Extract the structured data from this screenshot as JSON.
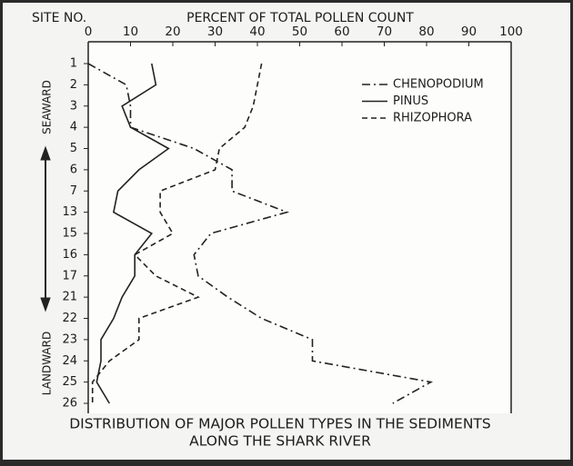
{
  "chart_data": {
    "type": "line",
    "orientation": "horizontal",
    "title_lines": [
      "DISTRIBUTION OF MAJOR POLLEN TYPES IN THE SEDIMENTS",
      "ALONG THE SHARK RIVER"
    ],
    "category_axis_label": "SITE NO.",
    "value_axis_label": "PERCENT OF TOTAL POLLEN COUNT",
    "direction_labels": [
      "SEAWARD",
      "LANDWARD"
    ],
    "categories": [
      "1",
      "2",
      "3",
      "4",
      "5",
      "6",
      "7",
      "13",
      "15",
      "16",
      "17",
      "21",
      "22",
      "23",
      "24",
      "25",
      "26"
    ],
    "xlim": [
      0,
      100
    ],
    "xticks": [
      0,
      10,
      20,
      30,
      40,
      50,
      60,
      70,
      80,
      90,
      100
    ],
    "legend": "top-right",
    "series": [
      {
        "name": "CHENOPODIUM",
        "color": "#222222",
        "dash": "dash-dot",
        "values": [
          0,
          9,
          10,
          10,
          25,
          34,
          34,
          47,
          29,
          25,
          26,
          33,
          41,
          53,
          53,
          81,
          72
        ]
      },
      {
        "name": "PINUS",
        "color": "#222222",
        "dash": "solid",
        "values": [
          15,
          16,
          8,
          10,
          19,
          12,
          7,
          6,
          15,
          11,
          11,
          8,
          6,
          3,
          3,
          2,
          5
        ]
      },
      {
        "name": "RHIZOPHORA",
        "color": "#222222",
        "dash": "dashed",
        "values": [
          41,
          40,
          39,
          37,
          31,
          30,
          17,
          17,
          20,
          11,
          16,
          26,
          12,
          12,
          5,
          1,
          1
        ]
      }
    ]
  }
}
